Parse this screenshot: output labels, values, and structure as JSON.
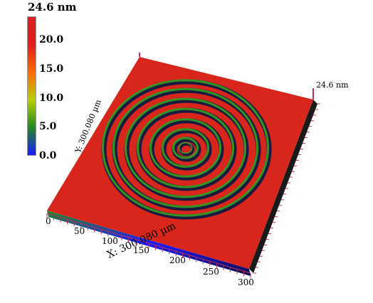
{
  "scale": {
    "max_label": "24.6 nm",
    "ticks": [
      "20.0",
      "15.0",
      "10.0",
      "5.0",
      "0.0"
    ],
    "colors": [
      "#1a1aff",
      "#1e8a1e",
      "#b8d000",
      "#ff6a00",
      "#e11c1c",
      "#d82020"
    ]
  },
  "z_axis_label": "24.6 nm",
  "x_axis": {
    "title": "X: 300.080 µm",
    "ticks": [
      "0",
      "50",
      "100",
      "150",
      "200",
      "250",
      "300"
    ]
  },
  "y_axis": {
    "title": "Y: 300.080 µm"
  },
  "surface": {
    "color": "#d8261c",
    "ring_count": 8
  }
}
